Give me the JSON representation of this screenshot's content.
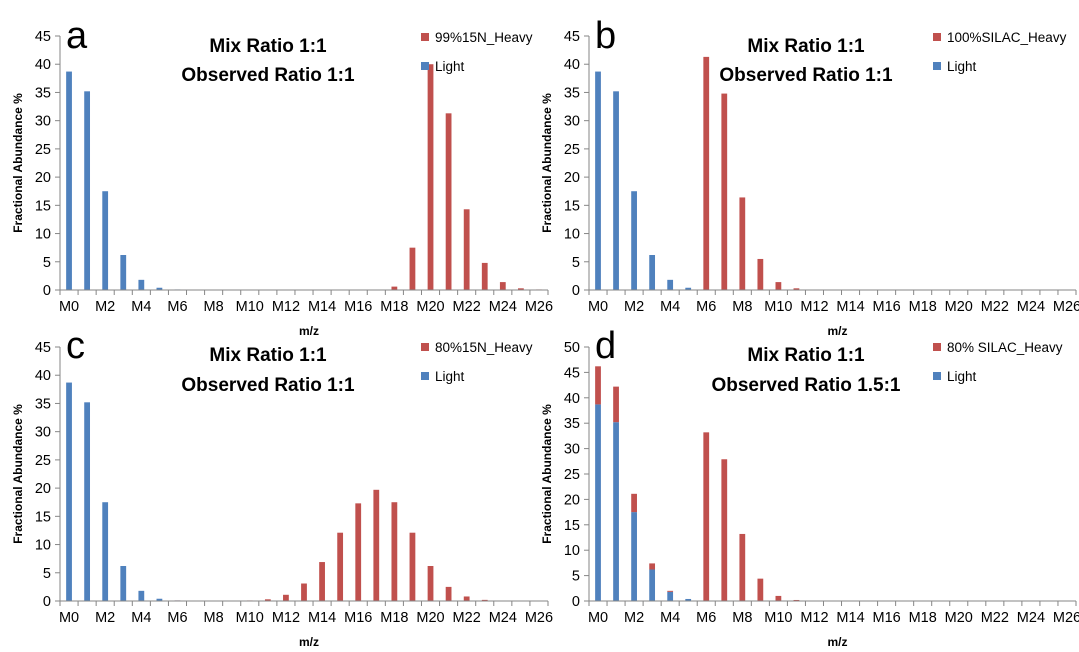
{
  "colors": {
    "heavy": "#c0504d",
    "light": "#4f81bd",
    "axis": "#868686",
    "grid": "#d9d9d9"
  },
  "chart_data": [
    {
      "type": "bar",
      "panel_label": "a",
      "title_lines": [
        "Mix Ratio 1:1",
        "Observed Ratio 1:1"
      ],
      "xlabel": "m/z",
      "ylabel": "Fractional Abundance %",
      "ylim": [
        0,
        45
      ],
      "yticks": [
        "0",
        "5",
        "10",
        "15",
        "20",
        "25",
        "30",
        "35",
        "40",
        "45"
      ],
      "categories": [
        "M0",
        "M1",
        "M2",
        "M3",
        "M4",
        "M5",
        "M6",
        "M7",
        "M8",
        "M9",
        "M10",
        "M11",
        "M12",
        "M13",
        "M14",
        "M15",
        "M16",
        "M17",
        "M18",
        "M19",
        "M20",
        "M21",
        "M22",
        "M23",
        "M24",
        "M25",
        "M26"
      ],
      "xtick_labels": [
        "M0",
        "M2",
        "M4",
        "M6",
        "M8",
        "M10",
        "M12",
        "M14",
        "M16",
        "M18",
        "M20",
        "M22",
        "M24",
        "M26"
      ],
      "legend_position": "top-right",
      "stacked": false,
      "series": [
        {
          "name": "99%15N_Heavy",
          "color": "#c0504d",
          "values": [
            0,
            0,
            0,
            0,
            0,
            0,
            0,
            0,
            0,
            0,
            0,
            0,
            0,
            0,
            0,
            0,
            0,
            0,
            0.6,
            7.5,
            40,
            31.3,
            14.3,
            4.8,
            1.4,
            0.3,
            0.1
          ]
        },
        {
          "name": "Light",
          "color": "#4f81bd",
          "values": [
            38.7,
            35.2,
            17.5,
            6.2,
            1.8,
            0.4,
            0.1,
            0,
            0,
            0,
            0,
            0,
            0,
            0,
            0,
            0,
            0,
            0,
            0,
            0,
            0,
            0,
            0,
            0,
            0,
            0,
            0
          ]
        }
      ]
    },
    {
      "type": "bar",
      "panel_label": "b",
      "title_lines": [
        "Mix Ratio 1:1",
        "Observed Ratio 1:1"
      ],
      "xlabel": "m/z",
      "ylabel": "Fractional Abundance %",
      "ylim": [
        0,
        45
      ],
      "yticks": [
        "0",
        "5",
        "10",
        "15",
        "20",
        "25",
        "30",
        "35",
        "40",
        "45"
      ],
      "categories": [
        "M0",
        "M1",
        "M2",
        "M3",
        "M4",
        "M5",
        "M6",
        "M7",
        "M8",
        "M9",
        "M10",
        "M11",
        "M12",
        "M13",
        "M14",
        "M15",
        "M16",
        "M17",
        "M18",
        "M19",
        "M20",
        "M21",
        "M22",
        "M23",
        "M24",
        "M25",
        "M26"
      ],
      "xtick_labels": [
        "M0",
        "M2",
        "M4",
        "M6",
        "M8",
        "M10",
        "M12",
        "M14",
        "M16",
        "M18",
        "M20",
        "M22",
        "M24",
        "M26"
      ],
      "legend_position": "top-right",
      "stacked": false,
      "series": [
        {
          "name": "100%SILAC_Heavy",
          "color": "#c0504d",
          "values": [
            0,
            0,
            0,
            0,
            0,
            0,
            41.3,
            34.8,
            16.4,
            5.5,
            1.4,
            0.3,
            0.05,
            0,
            0,
            0,
            0,
            0,
            0,
            0,
            0,
            0,
            0,
            0,
            0,
            0,
            0
          ]
        },
        {
          "name": "Light",
          "color": "#4f81bd",
          "values": [
            38.7,
            35.2,
            17.5,
            6.2,
            1.8,
            0.4,
            0.1,
            0,
            0,
            0,
            0,
            0,
            0,
            0,
            0,
            0,
            0,
            0,
            0,
            0,
            0,
            0,
            0,
            0,
            0,
            0,
            0
          ]
        }
      ]
    },
    {
      "type": "bar",
      "panel_label": "c",
      "title_lines": [
        "Mix Ratio 1:1",
        "Observed Ratio 1:1"
      ],
      "xlabel": "m/z",
      "ylabel": "Fractional Abundance %",
      "ylim": [
        0,
        45
      ],
      "yticks": [
        "0",
        "5",
        "10",
        "15",
        "20",
        "25",
        "30",
        "35",
        "40",
        "45"
      ],
      "categories": [
        "M0",
        "M1",
        "M2",
        "M3",
        "M4",
        "M5",
        "M6",
        "M7",
        "M8",
        "M9",
        "M10",
        "M11",
        "M12",
        "M13",
        "M14",
        "M15",
        "M16",
        "M17",
        "M18",
        "M19",
        "M20",
        "M21",
        "M22",
        "M23",
        "M24",
        "M25",
        "M26"
      ],
      "xtick_labels": [
        "M0",
        "M2",
        "M4",
        "M6",
        "M8",
        "M10",
        "M12",
        "M14",
        "M16",
        "M18",
        "M20",
        "M22",
        "M24",
        "M26"
      ],
      "legend_position": "top-right",
      "stacked": false,
      "series": [
        {
          "name": "80%15N_Heavy",
          "color": "#c0504d",
          "values": [
            0,
            0,
            0,
            0,
            0,
            0,
            0.1,
            0,
            0,
            0,
            0.1,
            0.3,
            1.1,
            3.1,
            6.9,
            12.1,
            17.3,
            19.7,
            17.5,
            12.1,
            6.2,
            2.5,
            0.8,
            0.2,
            0.05,
            0,
            0
          ]
        },
        {
          "name": "Light",
          "color": "#4f81bd",
          "values": [
            38.7,
            35.2,
            17.5,
            6.2,
            1.8,
            0.4,
            0.1,
            0,
            0,
            0,
            0,
            0,
            0,
            0,
            0,
            0,
            0,
            0,
            0,
            0,
            0,
            0,
            0,
            0,
            0,
            0,
            0
          ]
        }
      ]
    },
    {
      "type": "bar",
      "panel_label": "d",
      "title_lines": [
        "Mix Ratio 1:1",
        "Observed Ratio 1.5:1"
      ],
      "xlabel": "m/z",
      "ylabel": "Fractional Abundance %",
      "ylim": [
        0,
        50
      ],
      "yticks": [
        "0",
        "5",
        "10",
        "15",
        "20",
        "25",
        "30",
        "35",
        "40",
        "45",
        "50"
      ],
      "categories": [
        "M0",
        "M1",
        "M2",
        "M3",
        "M4",
        "M5",
        "M6",
        "M7",
        "M8",
        "M9",
        "M10",
        "M11",
        "M12",
        "M13",
        "M14",
        "M15",
        "M16",
        "M17",
        "M18",
        "M19",
        "M20",
        "M21",
        "M22",
        "M23",
        "M24",
        "M25",
        "M26"
      ],
      "xtick_labels": [
        "M0",
        "M2",
        "M4",
        "M6",
        "M8",
        "M10",
        "M12",
        "M14",
        "M16",
        "M18",
        "M20",
        "M22",
        "M24",
        "M26"
      ],
      "legend_position": "top-right",
      "stacked": true,
      "series": [
        {
          "name": "80% SILAC_Heavy",
          "color": "#c0504d",
          "values": [
            7.5,
            7,
            3.6,
            1.2,
            0.2,
            0,
            33.1,
            27.9,
            13.2,
            4.4,
            1,
            0.2,
            0.05,
            0,
            0,
            0,
            0,
            0,
            0,
            0,
            0,
            0,
            0,
            0,
            0,
            0,
            0
          ]
        },
        {
          "name": "Light",
          "color": "#4f81bd",
          "values": [
            38.7,
            35.2,
            17.5,
            6.2,
            1.8,
            0.4,
            0.1,
            0,
            0,
            0,
            0,
            0,
            0,
            0,
            0,
            0,
            0,
            0,
            0,
            0,
            0,
            0,
            0,
            0,
            0,
            0,
            0
          ]
        }
      ]
    }
  ]
}
